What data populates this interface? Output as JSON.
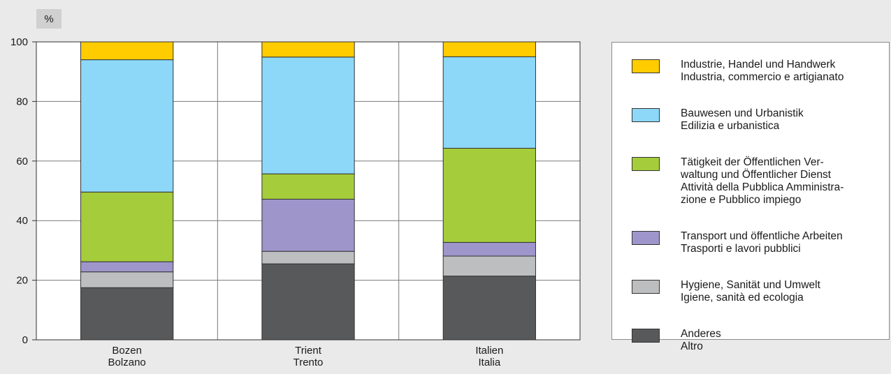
{
  "unit_label": "%",
  "colors": {
    "industry": "#ffcc00",
    "construction": "#8dd8f8",
    "admin": "#a5cc3b",
    "transport": "#9e96ca",
    "hygiene": "#bdbec0",
    "other": "#58595b"
  },
  "chart_data": {
    "type": "bar",
    "stacked": true,
    "categories": [
      [
        "Bozen",
        "Bolzano"
      ],
      [
        "Trient",
        "Trento"
      ],
      [
        "Italien",
        "Italia"
      ]
    ],
    "ylabel": "%",
    "ylim": [
      0,
      100
    ],
    "yticks": [
      0,
      20,
      40,
      60,
      80,
      100
    ],
    "grid": true,
    "legend_position": "right",
    "series": [
      {
        "key": "other",
        "name": [
          "Anderes",
          "Altro"
        ],
        "values": [
          17.5,
          25.5,
          21.4
        ]
      },
      {
        "key": "hygiene",
        "name": [
          "Hygiene, Sanität und Umwelt",
          "Igiene, sanità ed ecologia"
        ],
        "values": [
          5.3,
          4.2,
          6.7
        ]
      },
      {
        "key": "transport",
        "name": [
          "Transport und öffentliche Arbeiten",
          "Trasporti e lavori pubblici"
        ],
        "values": [
          3.4,
          17.5,
          4.6
        ]
      },
      {
        "key": "admin",
        "name": [
          "Tätigkeit der Öffentlichen Ver-",
          "waltung und Öffentlicher Dienst",
          "Attività della Pubblica Amministra-",
          "zione e Pubblico impiego"
        ],
        "values": [
          23.4,
          8.5,
          31.6
        ]
      },
      {
        "key": "construction",
        "name": [
          "Bauwesen und Urbanistik",
          "Edilizia e urbanistica"
        ],
        "values": [
          44.4,
          39.2,
          30.7
        ]
      },
      {
        "key": "industry",
        "name": [
          "Industrie, Handel und Handwerk",
          "Industria, commercio e artigianato"
        ],
        "values": [
          6.0,
          5.1,
          5.0
        ]
      }
    ]
  }
}
